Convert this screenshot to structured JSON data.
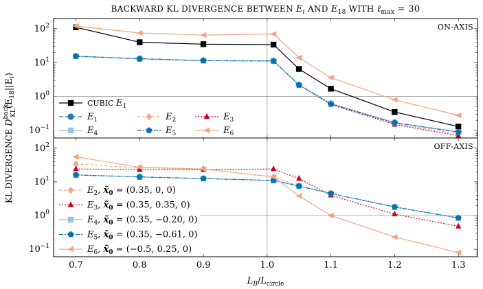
{
  "chart_data": {
    "type": "line",
    "title": "BACKWARD KL DIVERGENCE BETWEEN E_i AND E_18 WITH ℓ_max = 30",
    "title_parts": {
      "a": "BACKWARD KL DIVERGENCE BETWEEN ",
      "b": "E",
      "b_sub": "i",
      "c": " AND ",
      "d": "E",
      "d_sub": "18",
      "e": " WITH ",
      "f": "ℓ",
      "f_sub": "max",
      "g": " = 30"
    },
    "xlabel": "L_B / L_circle",
    "xlabel_parts": {
      "a": "L",
      "a_sub": "B",
      "b": "/",
      "c": "L",
      "c_sub": "circle"
    },
    "ylabel": "KL DIVERGENCE D_KL^back(E_18 || E_i)",
    "ylabel_parts": {
      "a": "KL DIVERGENCE ",
      "b": "D",
      "b_sup": "back",
      "b_sub": "KL",
      "c": "(E",
      "c_sub": "18",
      "d": "||E",
      "d_sub": "i",
      "e": ")"
    },
    "x_ticks": [
      "0.7",
      "0.8",
      "0.9",
      "1.0",
      "1.1",
      "1.2",
      "1.3"
    ],
    "x_range": [
      0.665,
      1.33
    ],
    "vertical_reference_x": 1.0,
    "panels": [
      {
        "id": "on-axis",
        "label": "ON-AXIS",
        "y_scale": "log",
        "y_range": [
          0.06,
          200
        ],
        "y_ticks": [
          {
            "value": 0.1,
            "label": "10",
            "sup": "−1"
          },
          {
            "value": 1,
            "label": "10",
            "sup": "0"
          },
          {
            "value": 10,
            "label": "10",
            "sup": "1"
          },
          {
            "value": 100,
            "label": "10",
            "sup": "2"
          }
        ],
        "series": [
          {
            "key": "cubic",
            "name": "CUBIC",
            "sym": "E",
            "sub": "1",
            "color": "#000000",
            "dash": "",
            "marker": "square",
            "x": [
              0.7,
              0.8,
              0.9,
              1.01,
              1.05,
              1.1,
              1.2,
              1.3
            ],
            "y": [
              110,
              40,
              35,
              34,
              6.5,
              1.7,
              0.35,
              0.13
            ]
          },
          {
            "key": "e1",
            "name": "",
            "sym": "E",
            "sub": "1",
            "color": "#1f77b4",
            "dash": "6,3",
            "marker": "circle",
            "x": [
              0.7,
              0.8,
              0.9,
              1.01,
              1.05,
              1.1,
              1.2,
              1.3
            ],
            "y": [
              15.5,
              13,
              11.5,
              11.2,
              2.2,
              0.62,
              0.17,
              0.09
            ]
          },
          {
            "key": "e2",
            "name": "",
            "sym": "E",
            "sub": "2",
            "color": "#f4a582",
            "dash": "4,3",
            "marker": "diamond",
            "x": [
              0.7,
              0.8,
              0.9,
              1.01,
              1.05,
              1.1,
              1.2,
              1.3
            ],
            "y": [
              15.5,
              13,
              11.5,
              11.2,
              2.2,
              0.6,
              0.16,
              0.08
            ]
          },
          {
            "key": "e3",
            "name": "",
            "sym": "E",
            "sub": "3",
            "color": "#ca0020",
            "dash": "2,2",
            "marker": "triangle",
            "x": [
              0.7,
              0.8,
              0.9,
              1.01,
              1.05,
              1.1,
              1.2,
              1.3
            ],
            "y": [
              15.5,
              13,
              11.5,
              11.2,
              2.2,
              0.58,
              0.15,
              0.07
            ]
          },
          {
            "key": "e4",
            "name": "",
            "sym": "E",
            "sub": "4",
            "color": "#92c5de",
            "dash": "",
            "marker": "square",
            "x": [
              0.7,
              0.8,
              0.9,
              1.01,
              1.05,
              1.1,
              1.2,
              1.3
            ],
            "y": [
              15.5,
              13,
              11.5,
              11.2,
              2.2,
              0.62,
              0.17,
              0.09
            ]
          },
          {
            "key": "e5",
            "name": "",
            "sym": "E",
            "sub": "5",
            "color": "#0571b0",
            "dash": "6,2,2,2",
            "marker": "pentagon",
            "x": [
              0.7,
              0.8,
              0.9,
              1.01,
              1.05,
              1.1,
              1.2,
              1.3
            ],
            "y": [
              15.5,
              13,
              11.5,
              11.2,
              2.2,
              0.6,
              0.17,
              0.09
            ]
          },
          {
            "key": "e6",
            "name": "",
            "sym": "E",
            "sub": "6",
            "color": "#f4a582",
            "dash": "",
            "marker": "tri-left",
            "x": [
              0.7,
              0.8,
              0.9,
              1.01,
              1.05,
              1.1,
              1.2,
              1.3
            ],
            "y": [
              120,
              75,
              65,
              70,
              14,
              3.6,
              0.8,
              0.28
            ]
          }
        ]
      },
      {
        "id": "off-axis",
        "label": "OFF-AXIS",
        "y_scale": "log",
        "y_range": [
          0.06,
          200
        ],
        "y_ticks": [
          {
            "value": 0.1,
            "label": "10",
            "sup": "−1"
          },
          {
            "value": 1,
            "label": "10",
            "sup": "0"
          },
          {
            "value": 10,
            "label": "10",
            "sup": "1"
          },
          {
            "value": 100,
            "label": "10",
            "sup": "2"
          }
        ],
        "series": [
          {
            "key": "e2",
            "sym": "E",
            "sub": "2",
            "x0": "(0.35, 0, 0)",
            "color": "#f4a582",
            "dash": "4,3",
            "marker": "diamond",
            "x": [
              0.7,
              0.8,
              0.9,
              1.01,
              1.05,
              1.1,
              1.2,
              1.3
            ],
            "y": [
              34,
              26,
              24,
              14,
              7.5,
              4.5,
              1.8,
              0.85
            ]
          },
          {
            "key": "e3",
            "sym": "E",
            "sub": "3",
            "x0": "(0.35, 0.35, 0)",
            "color": "#ca0020",
            "dash": "2,2",
            "marker": "triangle",
            "x": [
              0.7,
              0.8,
              0.9,
              1.01,
              1.05,
              1.1,
              1.2,
              1.3
            ],
            "y": [
              24,
              23,
              23,
              24,
              12.5,
              4,
              1.1,
              0.48
            ]
          },
          {
            "key": "e4",
            "sym": "E",
            "sub": "4",
            "x0": "(0.35, −0.20, 0)",
            "color": "#92c5de",
            "dash": "",
            "marker": "square",
            "x": [
              0.7,
              0.8,
              0.9,
              1.01,
              1.05,
              1.1,
              1.2,
              1.3
            ],
            "y": [
              16,
              14,
              12.5,
              11,
              7.5,
              4.5,
              1.8,
              0.85
            ]
          },
          {
            "key": "e5",
            "sym": "E",
            "sub": "5",
            "x0": "(0.35, −0.61, 0)",
            "color": "#0571b0",
            "dash": "6,2,2,2",
            "marker": "pentagon",
            "x": [
              0.7,
              0.8,
              0.9,
              1.01,
              1.05,
              1.1,
              1.2,
              1.3
            ],
            "y": [
              16,
              14,
              12.5,
              11,
              7.5,
              4.5,
              1.8,
              0.85
            ]
          },
          {
            "key": "e6",
            "sym": "E",
            "sub": "6",
            "x0": "(−0.5, 0.25, 0)",
            "color": "#f4a582",
            "dash": "",
            "marker": "tri-left",
            "x": [
              0.7,
              0.8,
              0.9,
              1.01,
              1.05,
              1.1,
              1.2,
              1.3
            ],
            "y": [
              55,
              27,
              24,
              14,
              3.8,
              1.0,
              0.23,
              0.08
            ]
          }
        ]
      }
    ],
    "legend_on_axis_placement": "lower-left",
    "legend_off_axis_placement": "lower-left"
  }
}
